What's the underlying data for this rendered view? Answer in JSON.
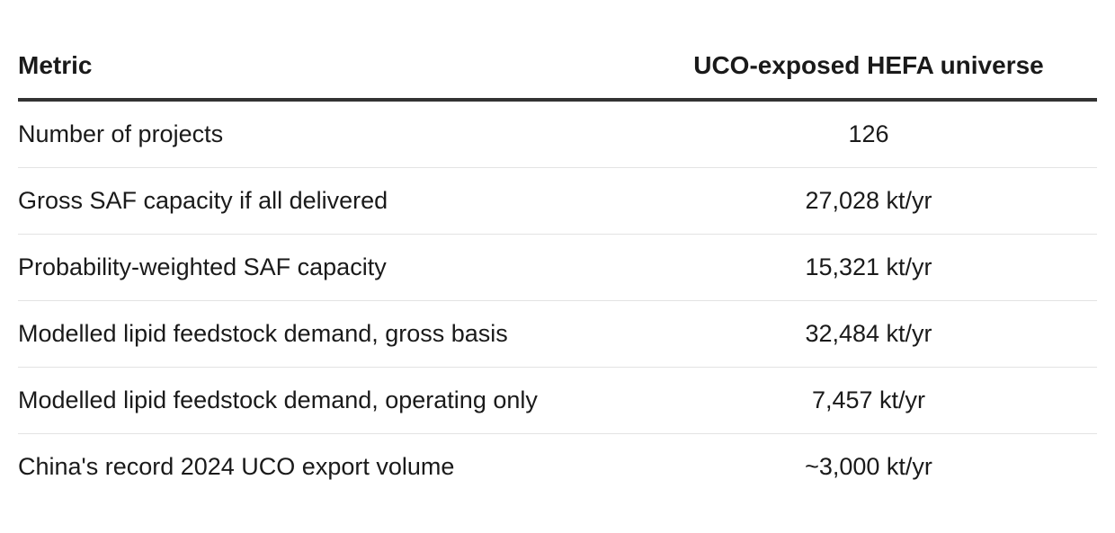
{
  "table": {
    "headers": {
      "metric": "Metric",
      "value": "UCO-exposed HEFA universe"
    },
    "rows": [
      {
        "metric": "Number of projects",
        "value": "126"
      },
      {
        "metric": "Gross SAF capacity if all delivered",
        "value": "27,028 kt/yr"
      },
      {
        "metric": "Probability-weighted SAF capacity",
        "value": "15,321 kt/yr"
      },
      {
        "metric": "Modelled lipid feedstock demand, gross basis",
        "value": "32,484 kt/yr"
      },
      {
        "metric": "Modelled lipid feedstock demand, operating only",
        "value": "7,457 kt/yr"
      },
      {
        "metric": "China's record 2024 UCO export volume",
        "value": "~3,000 kt/yr"
      }
    ]
  }
}
